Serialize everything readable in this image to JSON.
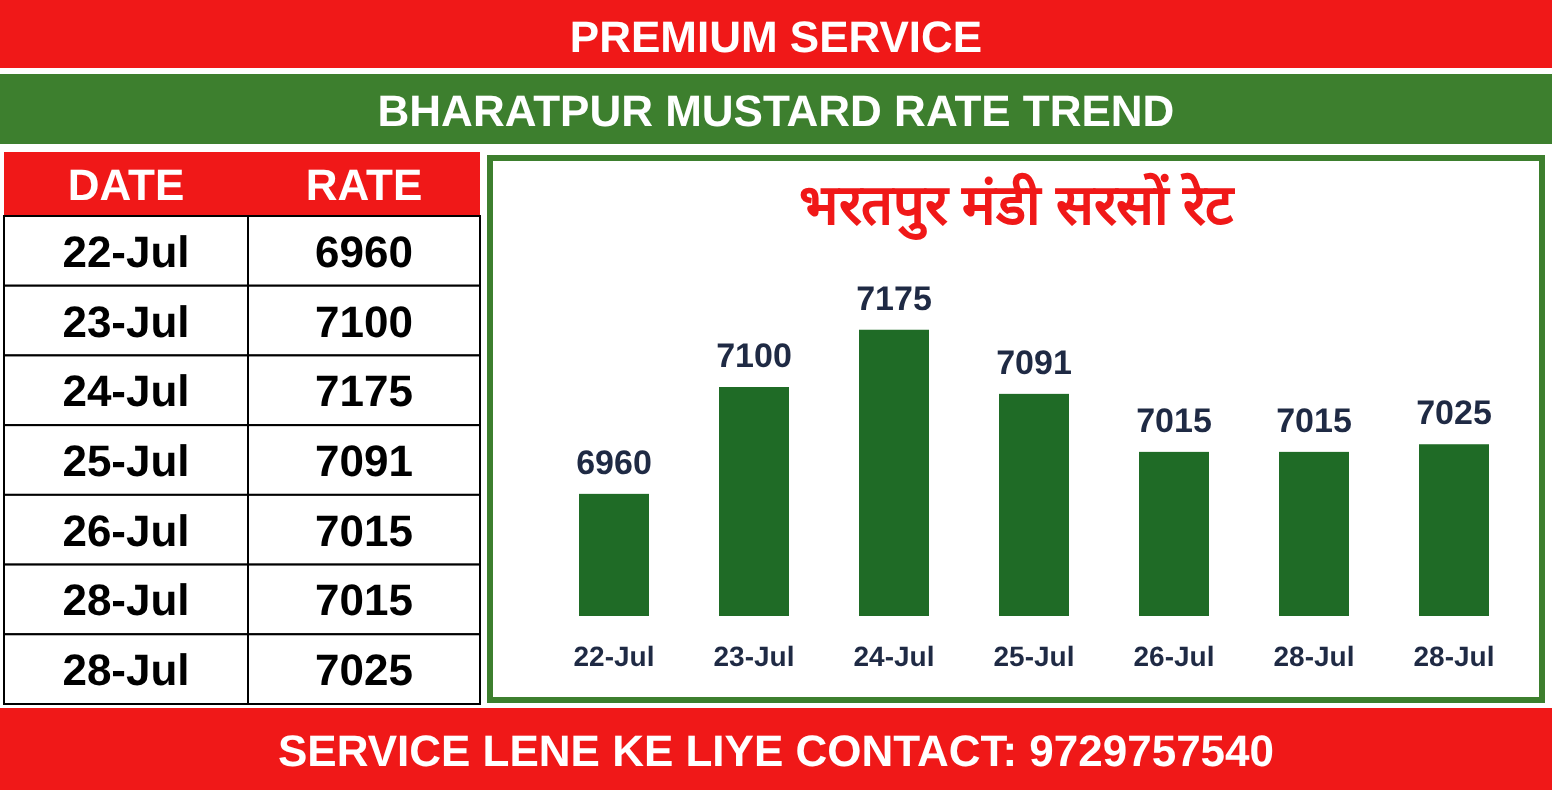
{
  "chart_data": [
    {
      "type": "other",
      "title": "BHARATPUR MUSTARD RATE TREND",
      "annotations": [
        "PREMIUM SERVICE",
        "DATE",
        "RATE",
        "SERVICE LENE KE LIYE CONTACT: 9729757540"
      ],
      "categories": [
        "22-Jul",
        "23-Jul",
        "24-Jul",
        "25-Jul",
        "26-Jul",
        "28-Jul",
        "28-Jul"
      ],
      "values": [
        6960,
        7100,
        7175,
        7091,
        7015,
        7015,
        7025
      ],
      "data_labels": true
    },
    {
      "type": "bar",
      "title": "भरतपुर मंडी सरसों रेट",
      "categories": [
        "22-Jul",
        "23-Jul",
        "24-Jul",
        "25-Jul",
        "26-Jul",
        "28-Jul",
        "28-Jul"
      ],
      "values": [
        6960,
        7100,
        7175,
        7091,
        7015,
        7015,
        7025
      ],
      "color": "#1f6b26",
      "ylim": [
        6800,
        7400
      ],
      "data_labels": true
    }
  ]
}
